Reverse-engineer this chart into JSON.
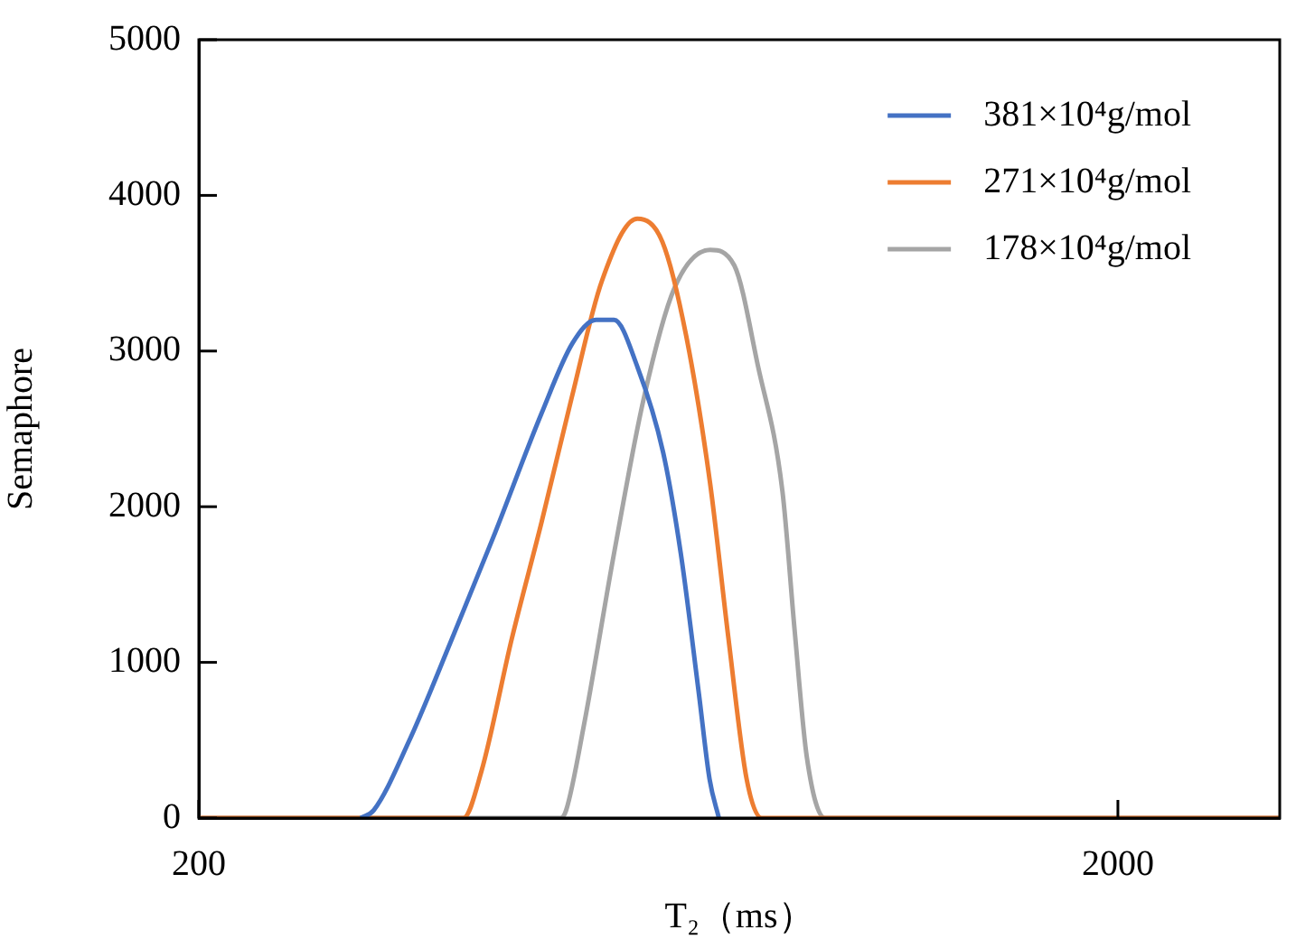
{
  "chart_data": {
    "type": "line",
    "xlabel": "T₂（ms）",
    "ylabel": "Semaphore",
    "log": "x",
    "xlim": [
      200,
      3000
    ],
    "xticks": [
      200,
      2000
    ],
    "ylim": [
      0,
      5000
    ],
    "yticks": [
      0,
      1000,
      2000,
      3000,
      4000,
      5000
    ],
    "grid": false,
    "legend": "top right",
    "marker": "none",
    "line_style": "solid",
    "series": [
      {
        "name": "381×10⁴g/mol",
        "color": "#4472c4",
        "x": [
          300,
          310,
          339,
          377,
          418,
          472,
          510,
          541,
          566,
          600,
          640,
          669,
          700,
          719,
          736
        ],
        "values": [
          0,
          50,
          500,
          1150,
          1800,
          2600,
          3050,
          3200,
          3200,
          2900,
          2350,
          1700,
          800,
          250,
          0
        ]
      },
      {
        "name": "271×10⁴g/mol",
        "color": "#ed7d31",
        "x": [
          200,
          388,
          406,
          438,
          472,
          509,
          549,
          600,
          639,
          678,
          720,
          754,
          789,
          819,
          3000
        ],
        "values": [
          0,
          0,
          300,
          1150,
          1900,
          2700,
          3450,
          3850,
          3700,
          3100,
          2150,
          1150,
          250,
          0,
          0
        ]
      },
      {
        "name": "178×10⁴g/mol",
        "color": "#a5a5a5",
        "x": [
          200,
          495,
          502,
          525,
          566,
          610,
          658,
          720,
          765,
          812,
          863,
          890,
          917,
          960,
          3000
        ],
        "values": [
          0,
          0,
          50,
          600,
          1700,
          2700,
          3400,
          3650,
          3550,
          2900,
          2100,
          1200,
          400,
          0,
          0
        ]
      }
    ]
  }
}
